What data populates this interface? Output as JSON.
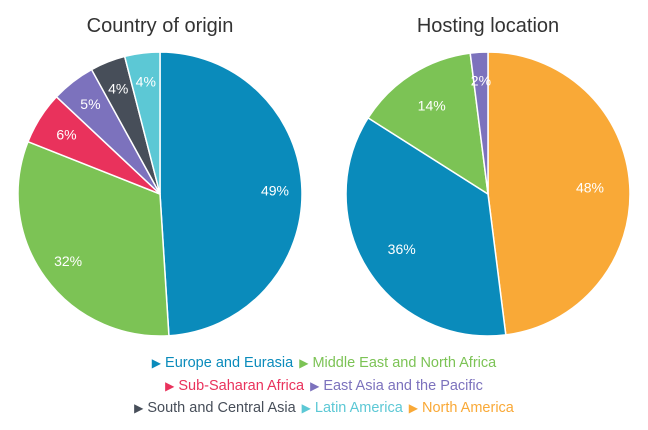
{
  "chart_data": [
    {
      "type": "pie",
      "title": "Country of origin",
      "slices": [
        {
          "label": "Europe and Eurasia",
          "value": 49,
          "color": "#0a8bbb"
        },
        {
          "label": "Middle East and North Africa",
          "value": 32,
          "color": "#7cc355"
        },
        {
          "label": "Sub-Saharan Africa",
          "value": 6,
          "color": "#e9325c"
        },
        {
          "label": "East Asia and the Pacific",
          "value": 5,
          "color": "#7c72bd"
        },
        {
          "label": "South and Central Asia",
          "value": 4,
          "color": "#474e59"
        },
        {
          "label": "Latin America",
          "value": 4,
          "color": "#5cc8d5"
        }
      ],
      "data_labels": [
        "49%",
        "32%",
        "6%",
        "5%",
        "4%",
        "4%"
      ],
      "start": "12 o'clock",
      "direction": "clockwise"
    },
    {
      "type": "pie",
      "title": "Hosting location",
      "slices": [
        {
          "label": "North America",
          "value": 48,
          "color": "#f9a937"
        },
        {
          "label": "Europe and Eurasia",
          "value": 36,
          "color": "#0a8bbb"
        },
        {
          "label": "Middle East and North Africa",
          "value": 14,
          "color": "#7cc355"
        },
        {
          "label": "East Asia and the Pacific",
          "value": 2,
          "color": "#7c72bd"
        }
      ],
      "data_labels": [
        "48%",
        "36%",
        "14%",
        "2%"
      ],
      "start": "12 o'clock",
      "direction": "clockwise"
    }
  ],
  "legend": {
    "rows": [
      [
        {
          "label": "Europe and Eurasia",
          "color": "#0a8bbb",
          "marker": "▶"
        },
        {
          "label": "Middle East and North Africa",
          "color": "#7cc355",
          "marker": "▶"
        }
      ],
      [
        {
          "label": "Sub-Saharan Africa",
          "color": "#e9325c",
          "marker": "▶"
        },
        {
          "label": "East Asia and the Pacific",
          "color": "#7c72bd",
          "marker": "▶"
        }
      ],
      [
        {
          "label": "South and Central Asia",
          "color": "#474e59",
          "marker": "▶"
        },
        {
          "label": "Latin America",
          "color": "#5cc8d5",
          "marker": "▶"
        },
        {
          "label": "North America",
          "color": "#f9a937",
          "marker": "▶"
        }
      ]
    ]
  }
}
